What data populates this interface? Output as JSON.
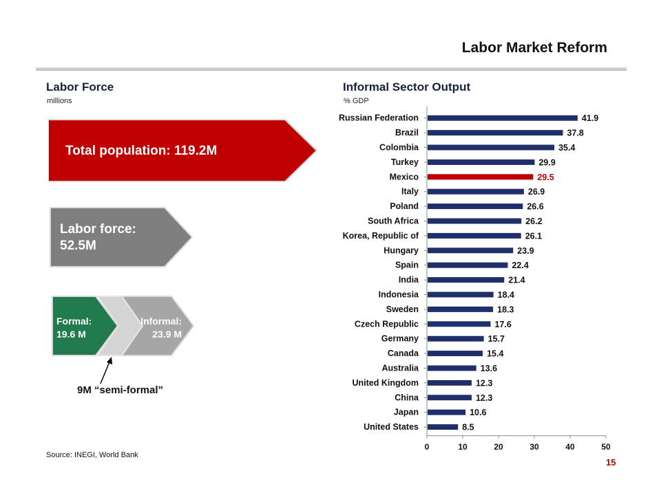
{
  "page": {
    "title": "Labor Market Reform",
    "page_number": "15",
    "source": "Source: INEGI, World Bank"
  },
  "labor_force": {
    "heading": "Labor Force",
    "unit": "millions",
    "total_population": "Total population: 119.2M",
    "labor_force_line1": "Labor force:",
    "labor_force_line2": "52.5M",
    "formal_line1": "Formal:",
    "formal_line2": "19.6 M",
    "informal_line1": "Informal:",
    "informal_line2": "23.9 M",
    "semi_formal": "9M “semi-formal”",
    "colors": {
      "total": "#c00000",
      "labor": "#7f7f7f",
      "formal": "#217a4e",
      "semi": "#d4d4d4",
      "informal": "#a6a6a6"
    }
  },
  "informal_output": {
    "heading": "Informal Sector Output",
    "unit": "% GDP"
  },
  "chart_data": {
    "type": "bar",
    "orientation": "horizontal",
    "categories": [
      "Russian Federation",
      "Brazil",
      "Colombia",
      "Turkey",
      "Mexico",
      "Italy",
      "Poland",
      "South Africa",
      "Korea, Republic of",
      "Hungary",
      "Spain",
      "India",
      "Indonesia",
      "Sweden",
      "Czech Republic",
      "Germany",
      "Canada",
      "Australia",
      "United Kingdom",
      "China",
      "Japan",
      "United States"
    ],
    "values": [
      41.9,
      37.8,
      35.4,
      29.9,
      29.5,
      26.9,
      26.6,
      26.2,
      26.1,
      23.9,
      22.4,
      21.4,
      18.4,
      18.3,
      17.6,
      15.7,
      15.4,
      13.6,
      12.3,
      12.3,
      10.6,
      8.5
    ],
    "value_labels": [
      "41.9",
      "37.8",
      "35.4",
      "29.9",
      "29.5",
      "26.9",
      "26.6",
      "26.2",
      "26.1",
      "23.9",
      "22.4",
      "21.4",
      "18.4",
      "18.3",
      "17.6",
      "15.7",
      "15.4",
      "13.6",
      "12.3",
      "12.3",
      "10.6",
      "8.5"
    ],
    "highlight": "Mexico",
    "xlim": [
      0,
      50
    ],
    "xticks": [
      "0",
      "10",
      "20",
      "30",
      "40",
      "50"
    ],
    "bar_color": "#1f2f6b",
    "highlight_color": "#c00000",
    "grid": false
  }
}
